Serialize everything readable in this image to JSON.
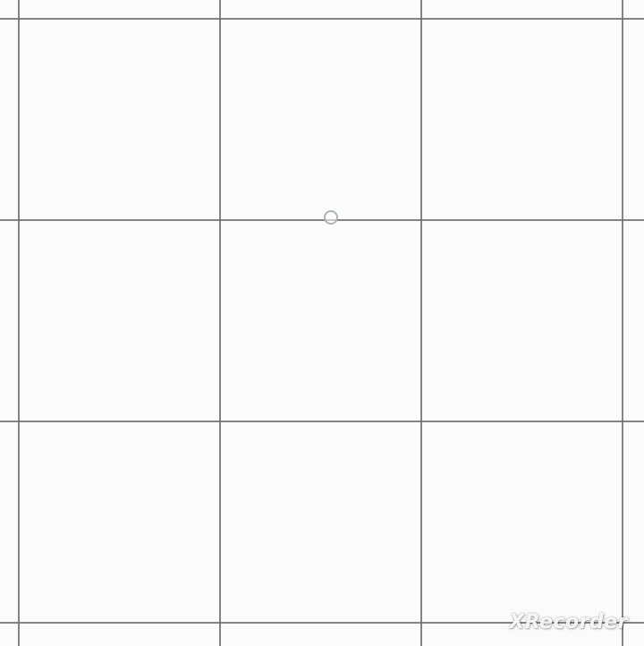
{
  "canvas": {
    "background": "#fbfbfb",
    "grid_color": "#6e6e6e",
    "grid": {
      "columns_visible": 4,
      "rows_visible": 4
    }
  },
  "touch_indicator": {
    "icon": "touch-point-circle"
  },
  "watermark": {
    "text": "XRecorder"
  }
}
